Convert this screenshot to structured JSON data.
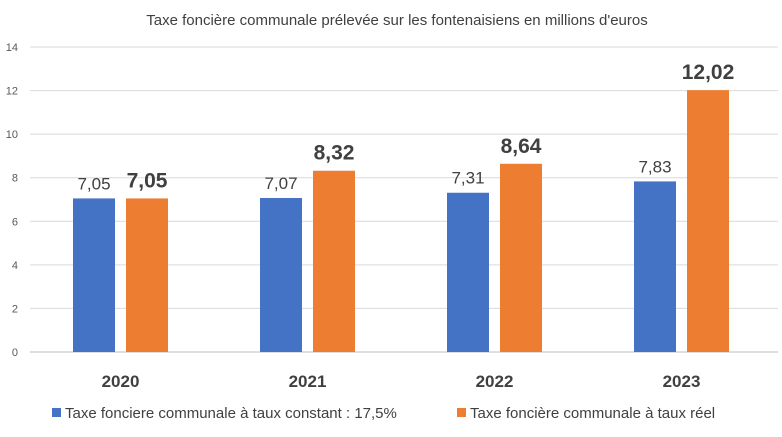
{
  "chart_data": {
    "type": "bar",
    "title": "Taxe foncière communale prélevée sur les fontenaisiens en millions d'euros",
    "categories": [
      "2020",
      "2021",
      "2022",
      "2023"
    ],
    "series": [
      {
        "name": "Taxe fonciere communale à taux constant : 17,5%",
        "values": [
          7.05,
          7.07,
          7.31,
          7.83
        ],
        "labels": [
          "7,05",
          "7,07",
          "7,31",
          "7,83"
        ],
        "color": "#4472C4"
      },
      {
        "name": "Taxe foncière communale à taux réel",
        "values": [
          7.05,
          8.32,
          8.64,
          12.02
        ],
        "labels": [
          "7,05",
          "8,32",
          "8,64",
          "12,02"
        ],
        "color": "#ED7D31"
      }
    ],
    "ylim": [
      0,
      14
    ],
    "yticks": [
      "0",
      "2",
      "4",
      "6",
      "8",
      "10",
      "12",
      "14"
    ],
    "grid": true,
    "legend": "bottom"
  }
}
